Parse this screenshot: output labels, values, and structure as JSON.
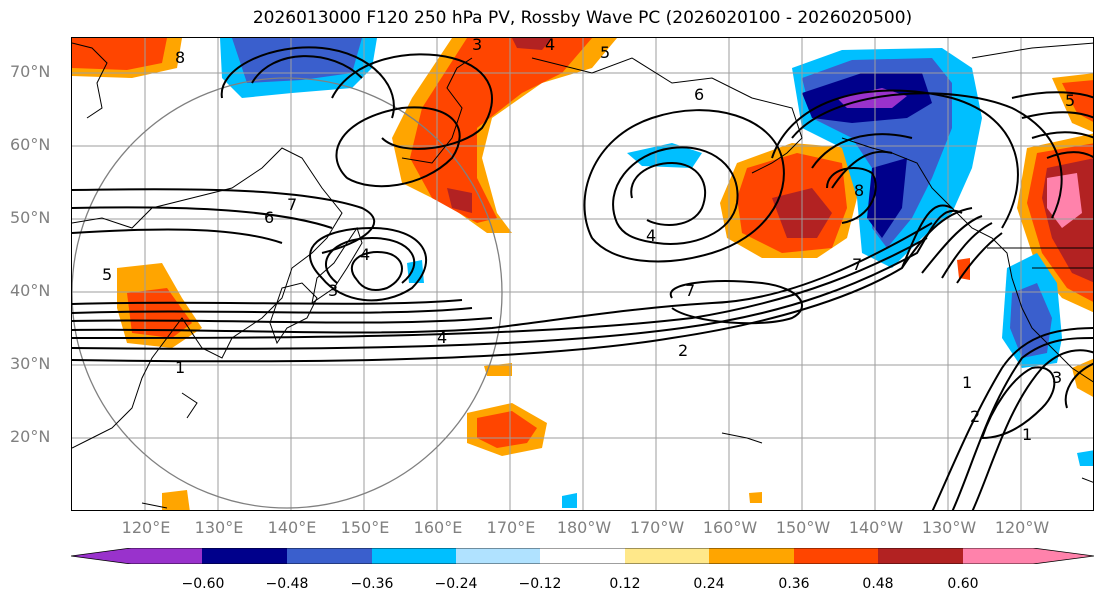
{
  "figure": {
    "title": "2026013000 F120 250 hPa PV, Rossby Wave PC (2026020100 - 2026020500)"
  },
  "axes": {
    "lat_labels": [
      "70°N",
      "60°N",
      "50°N",
      "40°N",
      "30°N",
      "20°N"
    ],
    "lon_labels": [
      "120°E",
      "130°E",
      "140°E",
      "150°E",
      "160°E",
      "170°E",
      "180°W",
      "170°W",
      "160°W",
      "150°W",
      "140°W",
      "130°W",
      "120°W"
    ]
  },
  "colorbar": {
    "tick_labels": [
      "−0.60",
      "−0.48",
      "−0.36",
      "−0.24",
      "−0.12",
      "0.12",
      "0.24",
      "0.36",
      "0.48",
      "0.60"
    ],
    "colors": [
      "#9932cc",
      "#00008b",
      "#3a5fcd",
      "#00bfff",
      "#b0e2ff",
      "#ffffff",
      "#ffe88a",
      "#ffa500",
      "#ff4500",
      "#b22222",
      "#ff82ab"
    ]
  },
  "chart_data": {
    "type": "map",
    "field": "250 hPa PV contours with Rossby Wave PC shading",
    "contour_labels": [
      "8",
      "3",
      "4",
      "5",
      "6",
      "7",
      "6",
      "4",
      "4",
      "3",
      "5",
      "4",
      "1",
      "2",
      "7",
      "8",
      "7",
      "5",
      "1",
      "2",
      "1",
      "3"
    ],
    "lat_range": [
      10,
      75
    ],
    "lon_range": [
      110,
      250
    ]
  }
}
